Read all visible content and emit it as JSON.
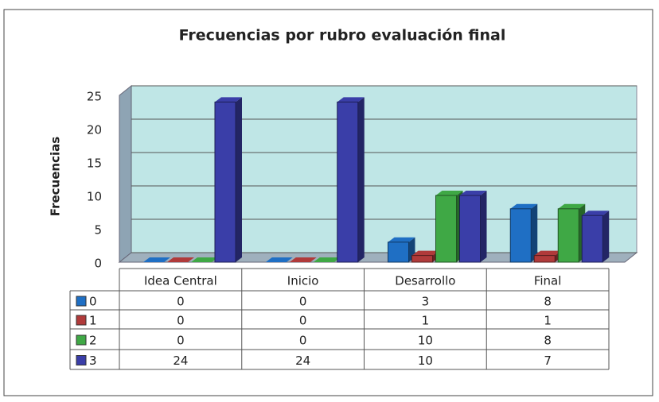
{
  "chart_data": {
    "type": "bar",
    "title": "Frecuencias por rubro evaluación final",
    "y_label": "Frecuencias",
    "categories": [
      "Idea Central",
      "Inicio",
      "Desarrollo",
      "Final"
    ],
    "series": [
      {
        "name": "0",
        "color": "#1f6fc4",
        "values": [
          0,
          0,
          3,
          8
        ]
      },
      {
        "name": "1",
        "color": "#b03a3a",
        "values": [
          0,
          0,
          1,
          1
        ]
      },
      {
        "name": "2",
        "color": "#3fa845",
        "values": [
          0,
          0,
          10,
          8
        ]
      },
      {
        "name": "3",
        "color": "#3a3ea8",
        "values": [
          24,
          24,
          10,
          7
        ]
      }
    ],
    "ylim": [
      0,
      25
    ],
    "yticks": [
      0,
      5,
      10,
      15,
      20,
      25
    ],
    "grid": true
  }
}
